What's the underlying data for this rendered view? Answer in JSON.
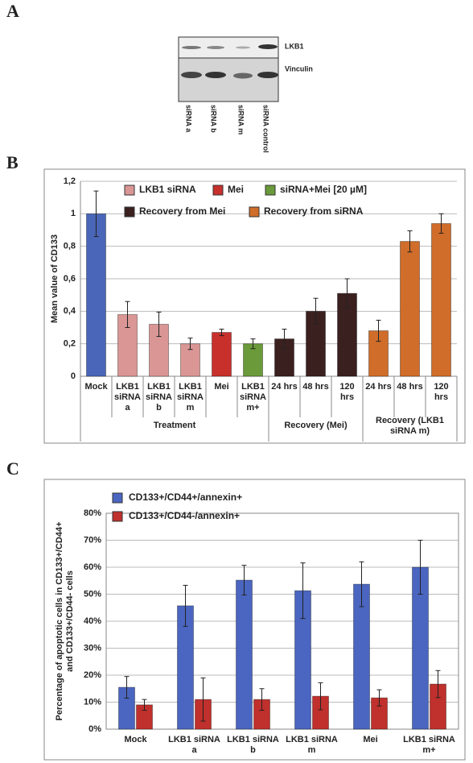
{
  "panel_labels": [
    "A",
    "B",
    "C"
  ],
  "blot": {
    "rows": [
      "LKB1",
      "Vinculin"
    ],
    "lanes": [
      "siRNA a",
      "siRNA b",
      "siRNA m",
      "siRNA control"
    ]
  },
  "chart_data": [
    {
      "type": "bar",
      "ylabel": "Mean value of CD133",
      "categories": [
        "Mock",
        "LKB1\nsiRNA\na",
        "LKB1\nsiRNA\nb",
        "LKB1\nsiRNA\nm",
        "Mei",
        "LKB1\nsiRNA\nm+",
        "24 hrs",
        "48 hrs",
        "120\nhrs",
        "24 hrs",
        "48 hrs",
        "120\nhrs"
      ],
      "values": [
        1.0,
        0.38,
        0.32,
        0.2,
        0.27,
        0.2,
        0.23,
        0.4,
        0.51,
        0.28,
        0.83,
        0.94
      ],
      "errors": [
        0.14,
        0.08,
        0.075,
        0.035,
        0.02,
        0.03,
        0.06,
        0.08,
        0.09,
        0.065,
        0.065,
        0.06
      ],
      "colors": [
        "#4a66b8",
        "#d99694",
        "#d99694",
        "#d99694",
        "#c8302c",
        "#6a9a3a",
        "#3b2020",
        "#3b2020",
        "#3b2020",
        "#d06d2a",
        "#d06d2a",
        "#d06d2a"
      ],
      "legend": [
        {
          "name": "LKB1 siRNA",
          "color": "#d99694"
        },
        {
          "name": "Mei",
          "color": "#c8302c"
        },
        {
          "name": "siRNA+Mei [20 µM]",
          "color": "#6a9a3a"
        },
        {
          "name": "Recovery from Mei",
          "color": "#3b2020"
        },
        {
          "name": "Recovery from siRNA",
          "color": "#d06d2a"
        }
      ],
      "groups": [
        {
          "label": "Treatment",
          "span": 6
        },
        {
          "label": "Recovery (Mei)",
          "span": 3
        },
        {
          "label": "Recovery (LKB1\nsiRNA m)",
          "span": 3
        }
      ],
      "ylim": [
        0,
        1.2
      ],
      "yticks": [
        0,
        {
          "value": 0.2,
          "label": "0,2"
        },
        {
          "value": 0.4,
          "label": "0,4"
        },
        {
          "value": 0.6,
          "label": "0,6"
        },
        {
          "value": 0.8,
          "label": "0,8"
        },
        1,
        {
          "value": 1.2,
          "label": "1,2"
        }
      ],
      "grid": true
    },
    {
      "type": "grouped-bar",
      "ylabel": "Percentage of apoptotic cells in CD133+/CD44+\nand CD133+/CD44- cells",
      "categories": [
        "Mock",
        "LKB1 siRNA\na",
        "LKB1 siRNA\nb",
        "LKB1 siRNA\nm",
        "Mei",
        "LKB1 siRNA\nm+"
      ],
      "series": [
        {
          "name": "CD133+/CD44+/annexin+",
          "color": "#4a66c0",
          "values": [
            15.5,
            45.7,
            55.2,
            51.3,
            53.7,
            60
          ],
          "errors": [
            4,
            7.6,
            5.5,
            10.3,
            8.3,
            10
          ]
        },
        {
          "name": "CD133+/CD44-/annexin+",
          "color": "#c0302c",
          "values": [
            9,
            11,
            11,
            12.2,
            11.6,
            16.7
          ],
          "errors": [
            2,
            8,
            4,
            5,
            3,
            5
          ]
        }
      ],
      "ylim": [
        0,
        80
      ],
      "yticks": [
        {
          "value": 0,
          "label": "0%"
        },
        {
          "value": 10,
          "label": "10%"
        },
        {
          "value": 20,
          "label": "20%"
        },
        {
          "value": 30,
          "label": "30%"
        },
        {
          "value": 40,
          "label": "40%"
        },
        {
          "value": 50,
          "label": "50%"
        },
        {
          "value": 60,
          "label": "60%"
        },
        {
          "value": 70,
          "label": "70%"
        },
        {
          "value": 80,
          "label": "80%"
        }
      ],
      "grid": true
    }
  ]
}
